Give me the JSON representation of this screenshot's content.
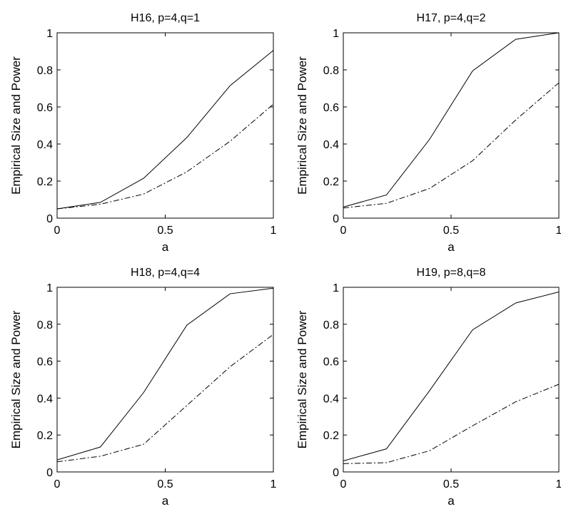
{
  "chart_data": [
    {
      "type": "line",
      "title": "H16, p=4,q=1",
      "xlabel": "a",
      "ylabel": "Empirical Size and Power",
      "xlim": [
        0,
        1
      ],
      "ylim": [
        0,
        1
      ],
      "xticks": [
        "0",
        "0.5",
        "1"
      ],
      "yticks": [
        "0",
        "0.2",
        "0.4",
        "0.6",
        "0.8",
        "1"
      ],
      "grid": false,
      "x": [
        0,
        0.2,
        0.4,
        0.6,
        0.8,
        1
      ],
      "series": [
        {
          "style": "solid",
          "values": [
            0.05,
            0.085,
            0.215,
            0.435,
            0.715,
            0.905
          ]
        },
        {
          "style": "dash-dot",
          "values": [
            0.05,
            0.075,
            0.13,
            0.25,
            0.415,
            0.615
          ]
        }
      ]
    },
    {
      "type": "line",
      "title": "H17, p=4,q=2",
      "xlabel": "a",
      "ylabel": "Empirical Size and Power",
      "xlim": [
        0,
        1
      ],
      "ylim": [
        0,
        1
      ],
      "xticks": [
        "0",
        "0.5",
        "1"
      ],
      "yticks": [
        "0",
        "0.2",
        "0.4",
        "0.6",
        "0.8",
        "1"
      ],
      "grid": false,
      "x": [
        0,
        0.2,
        0.4,
        0.6,
        0.8,
        1
      ],
      "series": [
        {
          "style": "solid",
          "values": [
            0.06,
            0.125,
            0.425,
            0.795,
            0.965,
            1.0
          ]
        },
        {
          "style": "dash-dot",
          "values": [
            0.055,
            0.08,
            0.16,
            0.31,
            0.53,
            0.73
          ]
        }
      ]
    },
    {
      "type": "line",
      "title": "H18, p=4,q=4",
      "xlabel": "a",
      "ylabel": "Empirical Size and Power",
      "xlim": [
        0,
        1
      ],
      "ylim": [
        0,
        1
      ],
      "xticks": [
        "0",
        "0.5",
        "1"
      ],
      "yticks": [
        "0",
        "0.2",
        "0.4",
        "0.6",
        "0.8",
        "1"
      ],
      "grid": false,
      "x": [
        0,
        0.2,
        0.4,
        0.6,
        0.8,
        1
      ],
      "series": [
        {
          "style": "solid",
          "values": [
            0.065,
            0.135,
            0.43,
            0.795,
            0.965,
            0.995
          ]
        },
        {
          "style": "dash-dot",
          "values": [
            0.055,
            0.085,
            0.15,
            0.36,
            0.57,
            0.745
          ]
        }
      ]
    },
    {
      "type": "line",
      "title": "H19, p=8,q=8",
      "xlabel": "a",
      "ylabel": "Empirical Size and Power",
      "xlim": [
        0,
        1
      ],
      "ylim": [
        0,
        1
      ],
      "xticks": [
        "0",
        "0.5",
        "1"
      ],
      "yticks": [
        "0",
        "0.2",
        "0.4",
        "0.6",
        "0.8",
        "1"
      ],
      "grid": false,
      "x": [
        0,
        0.2,
        0.4,
        0.6,
        0.8,
        1
      ],
      "series": [
        {
          "style": "solid",
          "values": [
            0.06,
            0.125,
            0.44,
            0.77,
            0.915,
            0.975
          ]
        },
        {
          "style": "dash-dot",
          "values": [
            0.045,
            0.05,
            0.115,
            0.25,
            0.38,
            0.475
          ]
        }
      ]
    }
  ]
}
